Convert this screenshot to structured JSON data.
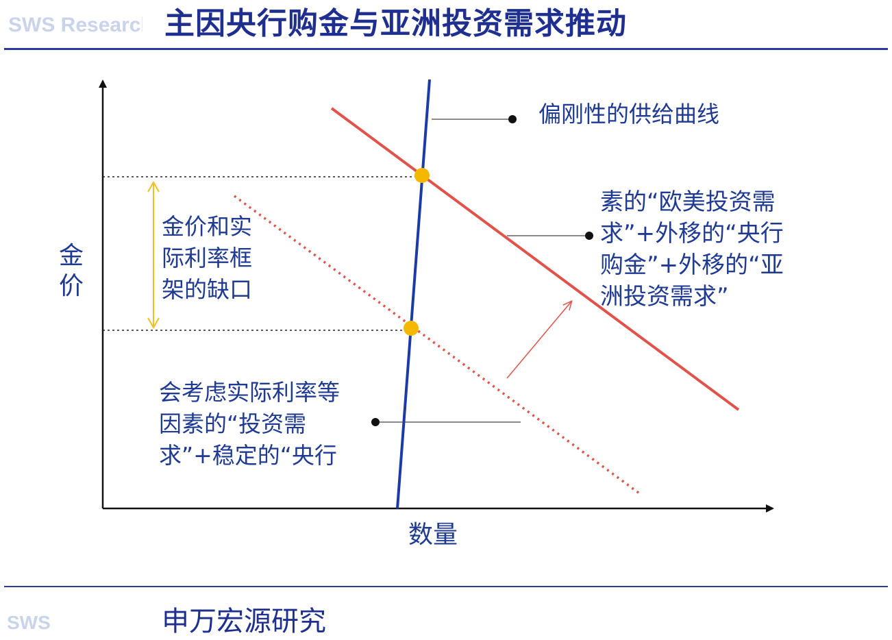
{
  "header": {
    "title": "主因央行购金与亚洲投资需求推动",
    "logo_text": "SWS Research"
  },
  "footer": {
    "org_name": "申万宏源研究",
    "logo_text": "SWS"
  },
  "diagram": {
    "y_axis_label": [
      "金",
      "价"
    ],
    "x_axis_label": "数量",
    "supply_label": "偏刚性的供给曲线",
    "gap_label": [
      "金价和实",
      "际利率框",
      "架的缺口"
    ],
    "new_demand_label": [
      "素的“欧美投资需",
      "求”+外移的“央行",
      "购金”+外移的“亚",
      "洲投资需求”"
    ],
    "old_demand_label": [
      "会考虑实际利率等",
      "因素的“投资需",
      "求”+稳定的“央行"
    ],
    "colors": {
      "axis": "#111111",
      "supply": "#1c3aa8",
      "demand": "#e0534b",
      "equilibrium": "#f5b800",
      "gap_arrow": "#f0c020",
      "label": "#1f3a93"
    }
  }
}
